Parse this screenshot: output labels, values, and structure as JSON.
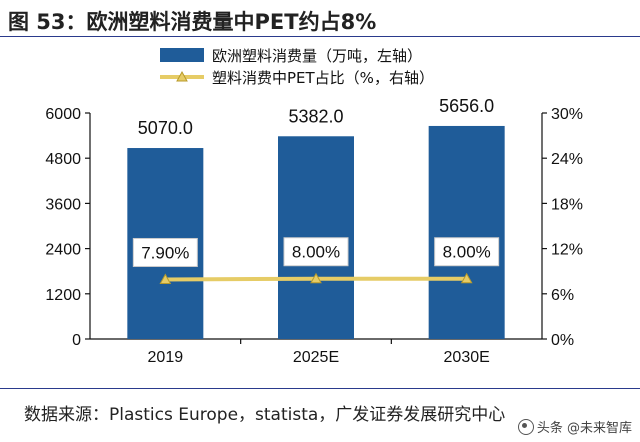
{
  "title": "图 53：欧洲塑料消费量中PET约占8%",
  "source": "数据来源：Plastics Europe，statista，广发证券发展研究中心",
  "watermark": "头条 @未来智库",
  "colors": {
    "bar": "#1f5c99",
    "line": "#e6cc66",
    "marker": "#e6cc66",
    "rule": "#2a3a8c"
  },
  "chart_data": {
    "type": "bar",
    "categories": [
      "2019",
      "2025E",
      "2030E"
    ],
    "series": [
      {
        "name": "欧洲塑料消费量（万吨，左轴）",
        "type": "bar",
        "axis": "left",
        "values": [
          5070.0,
          5382.0,
          5656.0
        ],
        "labels": [
          "5070.0",
          "5382.0",
          "5656.0"
        ]
      },
      {
        "name": "塑料消费中PET占比（%，右轴）",
        "type": "line",
        "axis": "right",
        "values": [
          7.9,
          8.0,
          8.0
        ],
        "labels": [
          "7.90%",
          "8.00%",
          "8.00%"
        ]
      }
    ],
    "y_left": {
      "ylim": [
        0,
        6000
      ],
      "ticks": [
        "0",
        "1200",
        "2400",
        "3600",
        "4800",
        "6000"
      ]
    },
    "y_right": {
      "ylim": [
        0,
        30
      ],
      "ticks": [
        "0%",
        "6%",
        "12%",
        "18%",
        "24%",
        "30%"
      ]
    },
    "legend_position": "top-center",
    "grid": false
  }
}
